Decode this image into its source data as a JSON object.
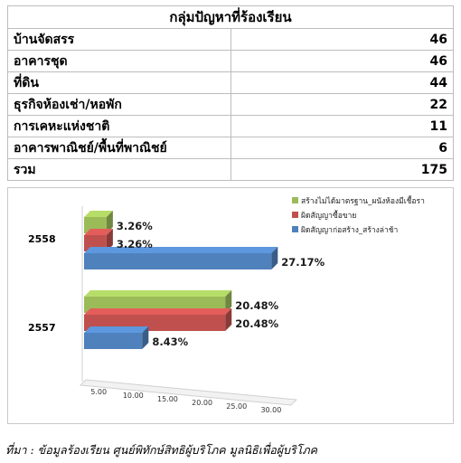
{
  "table": {
    "header": "กลุ่มปัญหาที่ร้องเรียน",
    "rows": [
      {
        "label": "บ้านจัดสรร",
        "value": "46"
      },
      {
        "label": "อาคารชุด",
        "value": "46"
      },
      {
        "label": "ที่ดิน",
        "value": "44"
      },
      {
        "label": "ธุรกิจห้องเช่า/หอพัก",
        "value": "22"
      },
      {
        "label": "การเคหะแห่งชาติ",
        "value": "11"
      },
      {
        "label": "อาคารพาณิชย์/พื้นที่พาณิชย์",
        "value": "6"
      }
    ],
    "total": {
      "label": "รวม",
      "value": "175"
    }
  },
  "chart_data": {
    "type": "bar",
    "orientation": "horizontal",
    "categories": [
      "2558",
      "2557"
    ],
    "series": [
      {
        "name": "สร้างไม่ได้มาตรฐาน_ผนังห้องมีเชื้อรา",
        "color": "#9bbb59",
        "values": [
          3.26,
          20.48
        ],
        "labels": [
          "3.26%",
          "20.48%"
        ]
      },
      {
        "name": "ผิดสัญญาซื้อขาย",
        "color": "#c0504d",
        "values": [
          3.26,
          20.48
        ],
        "labels": [
          "3.26%",
          "20.48%"
        ]
      },
      {
        "name": "ผิดสัญญาก่อสร้าง_สร้างล่าช้า",
        "color": "#4f81bd",
        "values": [
          27.17,
          8.43
        ],
        "labels": [
          "27.17%",
          "8.43%"
        ]
      }
    ],
    "xticks": [
      "5.00",
      "10.00",
      "15.00",
      "20.00",
      "25.00",
      "30.00"
    ],
    "xlim": [
      0,
      30
    ],
    "legend_position": "top-right",
    "grid": false
  },
  "source": "ที่มา : ข้อมูลร้องเรียน ศูนย์พิทักษ์สิทธิผู้บริโภค  มูลนิธิเพื่อผู้บริโภค"
}
